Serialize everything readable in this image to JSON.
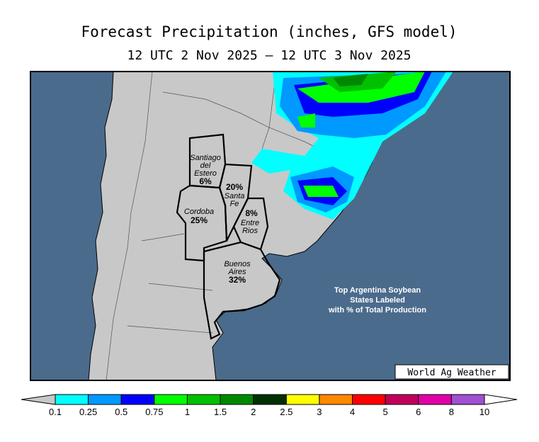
{
  "title": "Forecast Precipitation (inches, GFS model)",
  "subtitle": "12 UTC 2 Nov 2025 — 12 UTC 3 Nov 2025",
  "states": [
    {
      "name": [
        "Santiago",
        "del",
        "Estero"
      ],
      "share": "6%"
    },
    {
      "name": [
        "Santa",
        "Fe"
      ],
      "share": "20%"
    },
    {
      "name": [
        "Cordoba"
      ],
      "share": "25%"
    },
    {
      "name": [
        "Entre",
        "Rios"
      ],
      "share": "8%"
    },
    {
      "name": [
        "Buenos",
        "Aires"
      ],
      "share": "32%"
    }
  ],
  "annotation": [
    "Top Argentina Soybean",
    "States Labeled",
    "with % of Total Production"
  ],
  "credit": "World Ag Weather",
  "legend": {
    "ticks": [
      0.1,
      0.25,
      0.5,
      0.75,
      1,
      1.5,
      2,
      2.5,
      3,
      4,
      5,
      6,
      8,
      10
    ],
    "colors": [
      "#00ffff",
      "#0099ff",
      "#0000ff",
      "#00ff00",
      "#00c000",
      "#008800",
      "#003000",
      "#ffff00",
      "#ff8800",
      "#ff0000",
      "#c0005a",
      "#e000a8",
      "#a050d0"
    ]
  }
}
